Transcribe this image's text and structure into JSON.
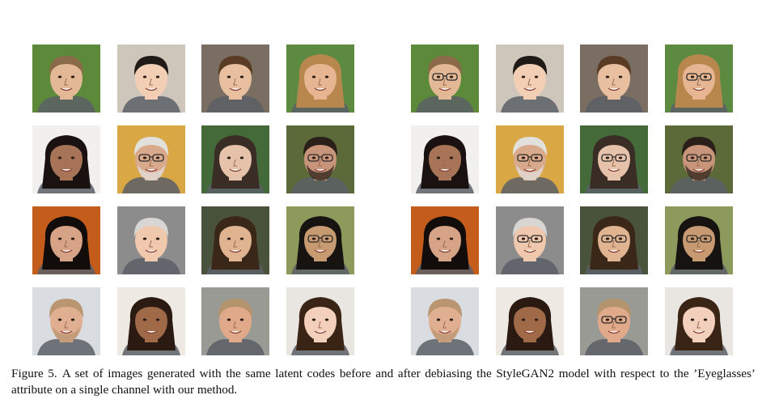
{
  "figure": {
    "caption_label": "Figure 5.",
    "caption_text": "A set of images generated with the same latent codes before and after debiasing the StyleGAN2 model with respect to the ’Eyeglasses’ attribute on a single channel with our method.",
    "colors": {
      "text": "#111111",
      "background": "#ffffff"
    },
    "faces": [
      {
        "bg": "#5c8a3a",
        "skin": "#e2b896",
        "hair": "#8a6a48",
        "long": false,
        "glasses_before": false,
        "glasses_after": true,
        "beard": false
      },
      {
        "bg": "#cfc6bb",
        "skin": "#f2cfb4",
        "hair": "#1f1a16",
        "long": false,
        "glasses_before": false,
        "glasses_after": false,
        "beard": false
      },
      {
        "bg": "#7a6d62",
        "skin": "#e8c0a0",
        "hair": "#5a3b24",
        "long": false,
        "glasses_before": false,
        "glasses_after": false,
        "beard": false
      },
      {
        "bg": "#5d8a41",
        "skin": "#e6b592",
        "hair": "#b8874e",
        "long": true,
        "glasses_before": false,
        "glasses_after": true,
        "beard": false
      },
      {
        "bg": "#f2f0ee",
        "skin": "#a77457",
        "hair": "#1a1210",
        "long": true,
        "glasses_before": false,
        "glasses_after": false,
        "beard": false
      },
      {
        "bg": "#d9a744",
        "skin": "#d9a98b",
        "hair": "#e2e0dc",
        "long": false,
        "glasses_before": true,
        "glasses_after": true,
        "beard": true
      },
      {
        "bg": "#446a39",
        "skin": "#e7c2aa",
        "hair": "#3a2d26",
        "long": true,
        "glasses_before": false,
        "glasses_after": true,
        "beard": false
      },
      {
        "bg": "#5c6a3a",
        "skin": "#c9957a",
        "hair": "#2a2019",
        "long": false,
        "glasses_before": true,
        "glasses_after": true,
        "beard": true
      },
      {
        "bg": "#c45c1c",
        "skin": "#d6a386",
        "hair": "#120d0b",
        "long": true,
        "glasses_before": false,
        "glasses_after": false,
        "beard": false
      },
      {
        "bg": "#8c8c8c",
        "skin": "#f0c8ae",
        "hair": "#d8d6d2",
        "long": false,
        "glasses_before": false,
        "glasses_after": true,
        "beard": false
      },
      {
        "bg": "#49523a",
        "skin": "#e0b391",
        "hair": "#3b2718",
        "long": true,
        "glasses_before": false,
        "glasses_after": true,
        "beard": false
      },
      {
        "bg": "#8c9a5c",
        "skin": "#c89a72",
        "hair": "#171310",
        "long": true,
        "glasses_before": true,
        "glasses_after": true,
        "beard": false
      },
      {
        "bg": "#d9dce0",
        "skin": "#e0ae90",
        "hair": "#b99572",
        "long": false,
        "glasses_before": false,
        "glasses_after": false,
        "beard": true
      },
      {
        "bg": "#efe9e4",
        "skin": "#a06a48",
        "hair": "#2a1a12",
        "long": true,
        "glasses_before": false,
        "glasses_after": false,
        "beard": false
      },
      {
        "bg": "#9a9a94",
        "skin": "#e0aa8a",
        "hair": "#b4946c",
        "long": false,
        "glasses_before": false,
        "glasses_after": true,
        "beard": false
      },
      {
        "bg": "#e9e6e2",
        "skin": "#f2d0bb",
        "hair": "#3a2416",
        "long": true,
        "glasses_before": false,
        "glasses_after": false,
        "beard": false
      }
    ]
  }
}
